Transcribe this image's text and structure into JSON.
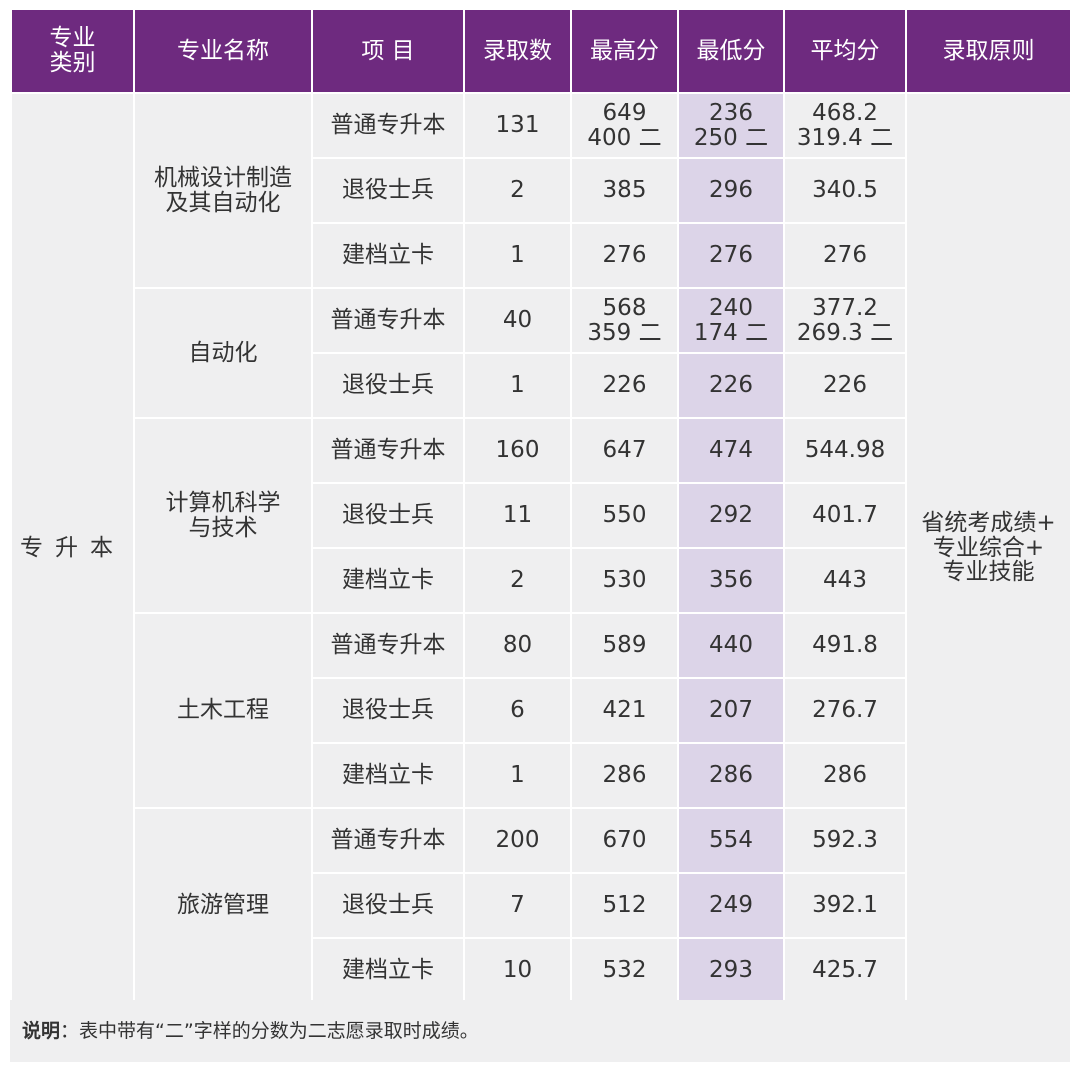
{
  "headers": [
    "专业\n类别",
    "专业名称",
    "项 目",
    "录取数",
    "最高分",
    "最低分",
    "平均分",
    "录取原则"
  ],
  "category": "专升本",
  "principle": "省统考成绩+\n专业综合+\n专业技能",
  "majors": [
    {
      "name": "机械设计制造\n及其自动化",
      "rows": [
        {
          "item": "普通专升本",
          "count": "131",
          "max": "649\n400 二",
          "min": "236\n250 二",
          "avg": "468.2\n319.4 二"
        },
        {
          "item": "退役士兵",
          "count": "2",
          "max": "385",
          "min": "296",
          "avg": "340.5"
        },
        {
          "item": "建档立卡",
          "count": "1",
          "max": "276",
          "min": "276",
          "avg": "276"
        }
      ]
    },
    {
      "name": "自动化",
      "rows": [
        {
          "item": "普通专升本",
          "count": "40",
          "max": "568\n359 二",
          "min": "240\n174 二",
          "avg": "377.2\n269.3 二"
        },
        {
          "item": "退役士兵",
          "count": "1",
          "max": "226",
          "min": "226",
          "avg": "226"
        }
      ]
    },
    {
      "name": "计算机科学\n与技术",
      "rows": [
        {
          "item": "普通专升本",
          "count": "160",
          "max": "647",
          "min": "474",
          "avg": "544.98"
        },
        {
          "item": "退役士兵",
          "count": "11",
          "max": "550",
          "min": "292",
          "avg": "401.7"
        },
        {
          "item": "建档立卡",
          "count": "2",
          "max": "530",
          "min": "356",
          "avg": "443"
        }
      ]
    },
    {
      "name": "土木工程",
      "rows": [
        {
          "item": "普通专升本",
          "count": "80",
          "max": "589",
          "min": "440",
          "avg": "491.8"
        },
        {
          "item": "退役士兵",
          "count": "6",
          "max": "421",
          "min": "207",
          "avg": "276.7"
        },
        {
          "item": "建档立卡",
          "count": "1",
          "max": "286",
          "min": "286",
          "avg": "286"
        }
      ]
    },
    {
      "name": "旅游管理",
      "rows": [
        {
          "item": "普通专升本",
          "count": "200",
          "max": "670",
          "min": "554",
          "avg": "592.3"
        },
        {
          "item": "退役士兵",
          "count": "7",
          "max": "512",
          "min": "249",
          "avg": "392.1"
        },
        {
          "item": "建档立卡",
          "count": "10",
          "max": "532",
          "min": "293",
          "avg": "425.7"
        }
      ]
    }
  ],
  "note": {
    "label": "说明",
    "text": "：表中带有“二”字样的分数为二志愿录取时成绩。"
  }
}
